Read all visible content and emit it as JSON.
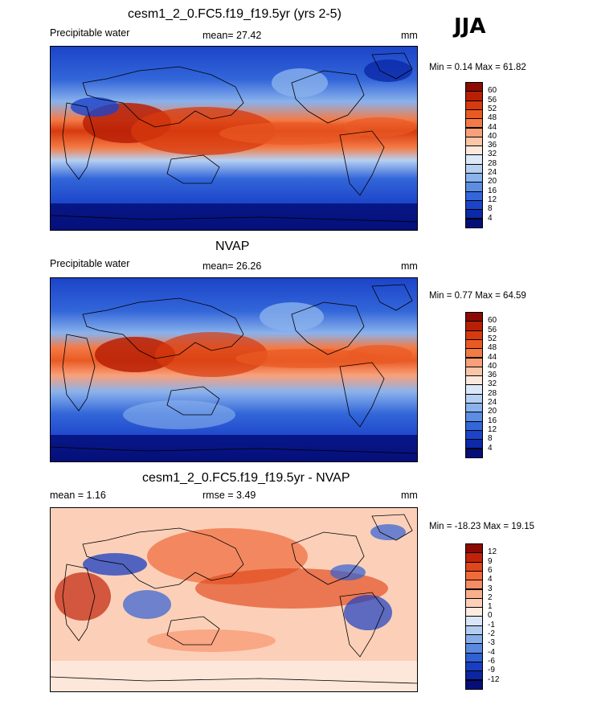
{
  "season": "JJA",
  "panels": [
    {
      "title": "cesm1_2_0.FC5.f19_f19.5yr (yrs 2-5)",
      "left_label": "Precipitable water",
      "mean_label": "mean=  27.42",
      "units": "mm",
      "minmax": "Min =   0.14 Max =  61.82",
      "colorbar": {
        "labels": [
          "60",
          "56",
          "52",
          "48",
          "44",
          "40",
          "36",
          "32",
          "28",
          "24",
          "20",
          "16",
          "12",
          "8",
          "4"
        ],
        "colors": [
          "#8b0a03",
          "#b82006",
          "#d73a0e",
          "#e95a23",
          "#f47a45",
          "#f9a07a",
          "#fbc6a8",
          "#fde9dc",
          "#dbe8f8",
          "#b6d0f2",
          "#8ab2ec",
          "#5b8de4",
          "#3366d9",
          "#1c44c9",
          "#0b29a8",
          "#050f7a"
        ]
      }
    },
    {
      "title": "NVAP",
      "left_label": "Precipitable water",
      "mean_label": "mean=  26.26",
      "units": "mm",
      "minmax": "Min =   0.77 Max =  64.59",
      "colorbar": {
        "labels": [
          "60",
          "56",
          "52",
          "48",
          "44",
          "40",
          "36",
          "32",
          "28",
          "24",
          "20",
          "16",
          "12",
          "8",
          "4"
        ],
        "colors": [
          "#8b0a03",
          "#b82006",
          "#d73a0e",
          "#e95a23",
          "#f47a45",
          "#f9a07a",
          "#fbc6a8",
          "#fde9dc",
          "#dbe8f8",
          "#b6d0f2",
          "#8ab2ec",
          "#5b8de4",
          "#3366d9",
          "#1c44c9",
          "#0b29a8",
          "#050f7a"
        ]
      }
    },
    {
      "title": "cesm1_2_0.FC5.f19_f19.5yr - NVAP",
      "left_label": "mean =   1.16",
      "mean_label": "rmse =   3.49",
      "units": "mm",
      "minmax": "Min = -18.23 Max =  19.15",
      "colorbar": {
        "labels": [
          "12",
          "9",
          "6",
          "4",
          "3",
          "2",
          "1",
          "0",
          "-1",
          "-2",
          "-3",
          "-4",
          "-6",
          "-9",
          "-12"
        ],
        "colors": [
          "#8b0a03",
          "#c0230a",
          "#e0461a",
          "#f06a3a",
          "#f68c62",
          "#f9ae8c",
          "#fcd0b8",
          "#fdebdf",
          "#d9e6f7",
          "#b3cdf1",
          "#86adea",
          "#5a89e1",
          "#3060d4",
          "#1a3ec2",
          "#0b26a0",
          "#050f7a"
        ]
      }
    }
  ]
}
